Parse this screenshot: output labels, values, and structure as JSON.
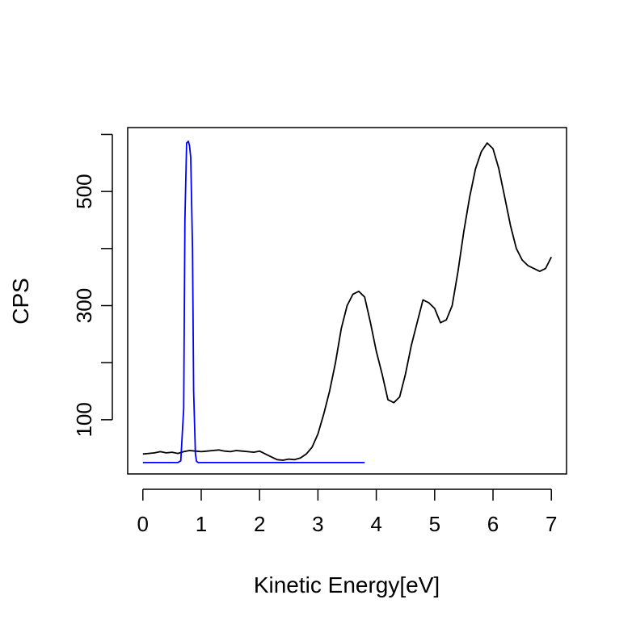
{
  "chart_data": {
    "type": "line",
    "title": "",
    "xlabel": "Kinetic Energy[eV]",
    "ylabel": "CPS",
    "xlim": [
      -0.26,
      7.26
    ],
    "ylim": [
      5,
      612
    ],
    "xticks": [
      "0",
      "1",
      "2",
      "3",
      "4",
      "5",
      "6",
      "7"
    ],
    "xtick_values": [
      0,
      1,
      2,
      3,
      4,
      5,
      6,
      7
    ],
    "yticks": [
      "100",
      "300",
      "500"
    ],
    "ytick_values": [
      100,
      200,
      300,
      400,
      500,
      600
    ],
    "ytick_labels_at": [
      100,
      300,
      500
    ],
    "grid": false,
    "series": [
      {
        "color": "#000000",
        "x": [
          0.0,
          0.1,
          0.2,
          0.3,
          0.4,
          0.5,
          0.6,
          0.7,
          0.8,
          0.9,
          1.0,
          1.1,
          1.2,
          1.3,
          1.4,
          1.5,
          1.6,
          1.7,
          1.8,
          1.9,
          2.0,
          2.1,
          2.2,
          2.3,
          2.4,
          2.5,
          2.6,
          2.7,
          2.8,
          2.9,
          3.0,
          3.1,
          3.2,
          3.3,
          3.4,
          3.5,
          3.6,
          3.7,
          3.8,
          3.9,
          4.0,
          4.1,
          4.2,
          4.3,
          4.4,
          4.5,
          4.6,
          4.7,
          4.8,
          4.9,
          5.0,
          5.1,
          5.2,
          5.3,
          5.4,
          5.5,
          5.6,
          5.7,
          5.8,
          5.9,
          6.0,
          6.1,
          6.2,
          6.3,
          6.4,
          6.5,
          6.6,
          6.7,
          6.8,
          6.9,
          7.0
        ],
        "y": [
          40,
          41,
          42,
          44,
          42,
          43,
          41,
          44,
          46,
          45,
          44,
          45,
          46,
          47,
          45,
          44,
          46,
          45,
          44,
          43,
          45,
          40,
          35,
          30,
          29,
          31,
          30,
          33,
          40,
          52,
          75,
          110,
          150,
          200,
          260,
          300,
          320,
          325,
          315,
          270,
          220,
          180,
          135,
          130,
          140,
          180,
          230,
          270,
          310,
          305,
          295,
          270,
          275,
          300,
          360,
          430,
          490,
          540,
          570,
          585,
          575,
          540,
          490,
          440,
          400,
          380,
          370,
          365,
          360,
          365,
          385
        ]
      },
      {
        "color": "#0000ff",
        "x": [
          0.0,
          0.6,
          0.65,
          0.7,
          0.72,
          0.75,
          0.78,
          0.8,
          0.82,
          0.85,
          0.87,
          0.9,
          0.92,
          0.95,
          1.0,
          2.0,
          3.0,
          3.8
        ],
        "y": [
          25,
          25,
          28,
          120,
          450,
          585,
          588,
          580,
          560,
          400,
          150,
          40,
          27,
          25,
          25,
          25,
          25,
          25
        ]
      }
    ]
  }
}
